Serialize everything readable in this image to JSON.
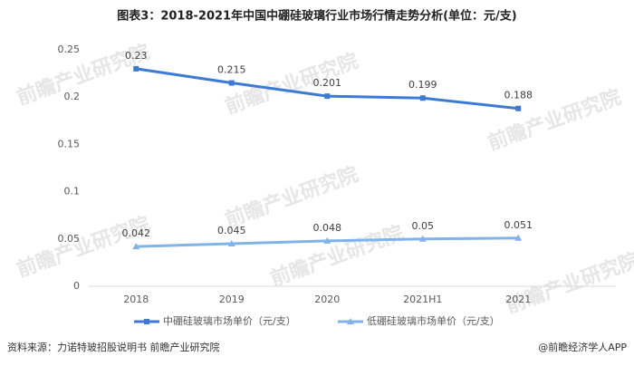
{
  "chart_data": {
    "type": "line",
    "title": "图表3：2018-2021年中国中硼硅玻璃行业市场行情走势分析(单位：元/支)",
    "categories": [
      "2018",
      "2019",
      "2020",
      "2021H1",
      "2021"
    ],
    "series": [
      {
        "name": "中硼硅玻璃市场单价（元/支）",
        "color": "#3d7ad6",
        "marker": "square",
        "values": [
          0.23,
          0.215,
          0.201,
          0.199,
          0.188
        ]
      },
      {
        "name": "低硼硅玻璃市场单价（元/支）",
        "color": "#80b3ea",
        "marker": "triangle",
        "values": [
          0.042,
          0.045,
          0.048,
          0.05,
          0.051
        ]
      }
    ],
    "ylim": [
      0,
      0.25
    ],
    "yticks": [
      0,
      0.05,
      0.1,
      0.15,
      0.2,
      0.25
    ],
    "grid": false,
    "source": "资料来源：力诺特玻招股说明书 前瞻产业研究院",
    "credit": "@前瞻经济学人APP",
    "watermark": "前瞻产业研究院"
  }
}
